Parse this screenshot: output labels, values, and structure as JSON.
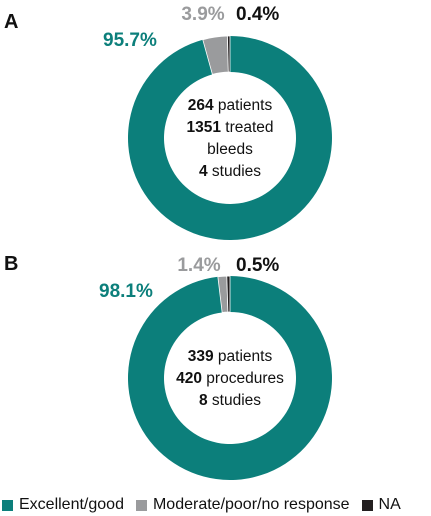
{
  "colors": {
    "excellent": "#0c7f7b",
    "moderate": "#9a9b9d",
    "na": "#231f20",
    "text": "#111111"
  },
  "chart_data": [
    {
      "type": "pie",
      "panel_label": "A",
      "categories": [
        "Excellent/good",
        "Moderate/poor/no response",
        "NA"
      ],
      "values": [
        95.7,
        3.9,
        0.4
      ],
      "value_labels": [
        "95.7%",
        "3.9%",
        "0.4%"
      ],
      "center_lines": [
        {
          "bold": "264",
          "rest": " patients"
        },
        {
          "bold": "1351",
          "rest": " treated"
        },
        {
          "bold": "",
          "rest": "bleeds"
        },
        {
          "bold": "4",
          "rest": " studies"
        }
      ]
    },
    {
      "type": "pie",
      "panel_label": "B",
      "categories": [
        "Excellent/good",
        "Moderate/poor/no response",
        "NA"
      ],
      "values": [
        98.1,
        1.4,
        0.5
      ],
      "value_labels": [
        "98.1%",
        "1.4%",
        "0.5%"
      ],
      "center_lines": [
        {
          "bold": "339",
          "rest": " patients"
        },
        {
          "bold": "420",
          "rest": " procedures"
        },
        {
          "bold": "8",
          "rest": " studies"
        }
      ]
    }
  ],
  "legend": [
    {
      "label": "Excellent/good",
      "color": "#0c7f7b"
    },
    {
      "label": "Moderate/poor/no response",
      "color": "#9a9b9d"
    },
    {
      "label": "NA",
      "color": "#231f20"
    }
  ]
}
